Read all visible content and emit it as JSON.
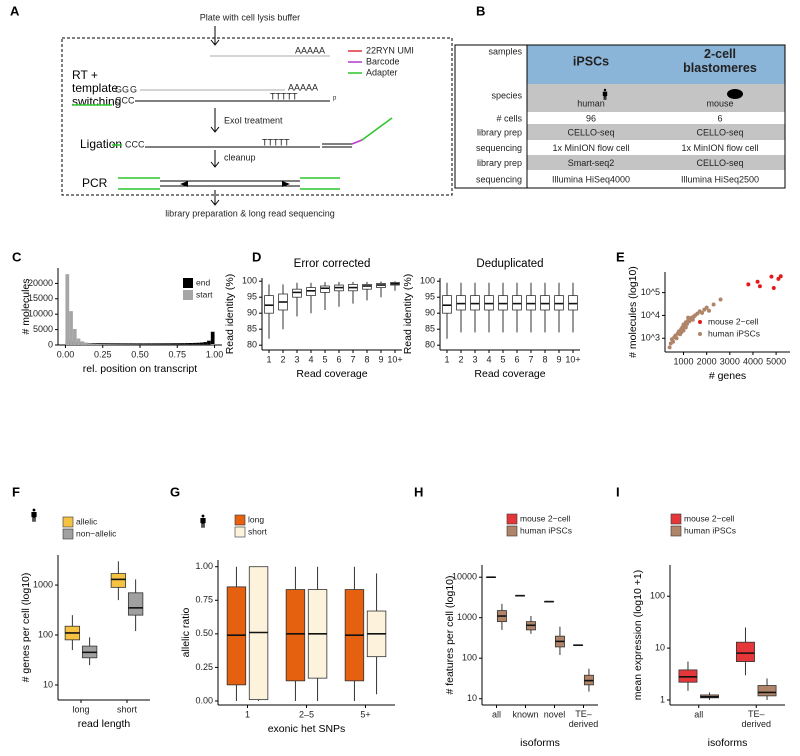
{
  "diagram": {
    "panel_label": "A",
    "plate": "Plate with cell lysis buffer",
    "polyA": "AAAAA",
    "legend": [
      "22RYN UMI",
      "Barcode",
      "Adapter"
    ],
    "steps": [
      "RT +\ntemplate\nswitching",
      "ExoI treatment",
      "Ligation",
      "cleanup",
      "PCR"
    ],
    "gg": "GG",
    "g": "G",
    "polyA_rt": "AAAAA",
    "ccc": "CCC",
    "polyT": "TTTTT",
    "phosphate": "p",
    "ccc_lig": "CCC",
    "polyT_lig": "TTTTT",
    "final": "library preparation & long read sequencing"
  },
  "table": {
    "panel_label": "B",
    "rows": [
      [
        "samples",
        "iPSCs",
        "2-cell\nblastomeres"
      ],
      [
        "species",
        "human",
        "mouse"
      ],
      [
        "# cells",
        "96",
        "6"
      ],
      [
        "library prep",
        "CELLO-seq",
        "CELLO-seq"
      ],
      [
        "sequencing",
        "1x MinION flow cell",
        "1x MinION flow cell"
      ],
      [
        "library prep",
        "Smart-seq2",
        "CELLO-seq"
      ],
      [
        "sequencing",
        "Illumina HiSeq4000",
        "Illumina HiSeq2500"
      ]
    ]
  },
  "chart_data": [
    {
      "type": "histogram",
      "panel_label": "C",
      "x_label": "rel. position on transcript",
      "y_label": "# molecules",
      "legend": "top-right",
      "bins": [
        0,
        0.025,
        0.05,
        0.075,
        0.1,
        0.125,
        0.15,
        0.175,
        0.2,
        0.225,
        0.25,
        0.275,
        0.3,
        0.325,
        0.35,
        0.375,
        0.4,
        0.425,
        0.45,
        0.475,
        0.5,
        0.525,
        0.55,
        0.575,
        0.6,
        0.625,
        0.65,
        0.675,
        0.7,
        0.725,
        0.75,
        0.775,
        0.8,
        0.825,
        0.85,
        0.875,
        0.9,
        0.925,
        0.95,
        0.975,
        1
      ],
      "series": [
        {
          "name": "end",
          "color": "#000000",
          "values": [
            1600,
            1100,
            850,
            750,
            700,
            650,
            620,
            600,
            590,
            580,
            570,
            560,
            560,
            550,
            550,
            540,
            540,
            540,
            530,
            530,
            530,
            530,
            540,
            540,
            550,
            550,
            560,
            560,
            570,
            580,
            590,
            600,
            620,
            650,
            680,
            720,
            800,
            950,
            1400,
            4300
          ]
        },
        {
          "name": "start",
          "color": "#a6a6a6",
          "values": [
            23000,
            11000,
            5200,
            2100,
            1200,
            800,
            550,
            420,
            350,
            300,
            270,
            250,
            230,
            220,
            210,
            200,
            190,
            180,
            170,
            160,
            150,
            150,
            140,
            140,
            130,
            130,
            120,
            120,
            110,
            110,
            100,
            100,
            100,
            90,
            90,
            90,
            80,
            80,
            80,
            300
          ]
        }
      ],
      "xlim": [
        -0.05,
        1.05
      ],
      "xticks": [
        {
          "value": 0,
          "label": "0.00"
        },
        0.25,
        {
          "value": 0.5,
          "label": "0.50"
        },
        0.75,
        {
          "value": 1,
          "label": "1.00"
        }
      ],
      "ylim": [
        0,
        25000
      ],
      "yticks": [
        0,
        5000,
        10000,
        15000,
        20000
      ]
    },
    {
      "type": "box",
      "panel_label": "D",
      "title": "Error corrected",
      "x_label": "Read coverage",
      "y_label": "Read identity (%)",
      "categories": [
        "1",
        "2",
        "3",
        "4",
        "5",
        "6",
        "7",
        "8",
        "9",
        "10+"
      ],
      "series": [
        {
          "color": "#ffffff",
          "boxes": [
            {
              "min": 82,
              "q1": 90,
              "median": 92.5,
              "q3": 95.5,
              "max": 99
            },
            {
              "min": 85,
              "q1": 91,
              "median": 93.5,
              "q3": 96,
              "max": 99
            },
            {
              "min": 89,
              "q1": 95,
              "median": 96.5,
              "q3": 97.5,
              "max": 99.5
            },
            {
              "min": 90,
              "q1": 95.5,
              "median": 97,
              "q3": 98,
              "max": 99.5
            },
            {
              "min": 91,
              "q1": 96.5,
              "median": 97.8,
              "q3": 98.5,
              "max": 99.7
            },
            {
              "min": 92,
              "q1": 97,
              "median": 98,
              "q3": 98.8,
              "max": 99.8
            },
            {
              "min": 93,
              "q1": 97,
              "median": 98,
              "q3": 99,
              "max": 99.8
            },
            {
              "min": 94,
              "q1": 97.5,
              "median": 98.5,
              "q3": 99,
              "max": 99.8
            },
            {
              "min": 95,
              "q1": 98,
              "median": 98.8,
              "q3": 99.3,
              "max": 99.9
            },
            {
              "min": 97,
              "q1": 98.8,
              "median": 99.2,
              "q3": 99.6,
              "max": 100
            }
          ]
        }
      ],
      "ylim": [
        78.5,
        101
      ],
      "yticks": [
        80,
        85,
        90,
        95,
        100
      ]
    },
    {
      "type": "box",
      "title": "Deduplicated",
      "x_label": "Read coverage",
      "y_label": "Read identity (%)",
      "categories": [
        "1",
        "2",
        "3",
        "4",
        "5",
        "6",
        "7",
        "8",
        "9",
        "10+"
      ],
      "series": [
        {
          "color": "#ffffff",
          "boxes": [
            {
              "min": 82,
              "q1": 90,
              "median": 92.5,
              "q3": 95.5,
              "max": 99.5
            },
            {
              "min": 84,
              "q1": 91,
              "median": 93,
              "q3": 95.5,
              "max": 99.5
            },
            {
              "min": 84,
              "q1": 91,
              "median": 93,
              "q3": 95.5,
              "max": 99.5
            },
            {
              "min": 84,
              "q1": 91,
              "median": 93,
              "q3": 95.5,
              "max": 99.5
            },
            {
              "min": 84,
              "q1": 91,
              "median": 93,
              "q3": 95.5,
              "max": 99.5
            },
            {
              "min": 84,
              "q1": 91,
              "median": 93,
              "q3": 95.5,
              "max": 99.5
            },
            {
              "min": 84,
              "q1": 91,
              "median": 93,
              "q3": 95.5,
              "max": 99.5
            },
            {
              "min": 84,
              "q1": 91,
              "median": 93,
              "q3": 95.5,
              "max": 99.5
            },
            {
              "min": 84,
              "q1": 91,
              "median": 93,
              "q3": 95.5,
              "max": 99.5
            },
            {
              "min": 84,
              "q1": 91,
              "median": 93,
              "q3": 95.5,
              "max": 99.5
            }
          ]
        }
      ],
      "ylim": [
        78.5,
        101
      ],
      "yticks": [
        80,
        85,
        90,
        95,
        100
      ]
    },
    {
      "type": "scatter",
      "panel_label": "E",
      "x_label": "# genes",
      "y_label": "# molecules (log10)",
      "legend": "bottom-right",
      "log_y": true,
      "series": [
        {
          "name": "mouse 2−cell",
          "color": "#e31a1c",
          "x": [
            3800,
            4200,
            4800,
            5100,
            5200,
            4900,
            4300
          ],
          "y": [
            230000,
            300000,
            500000,
            400000,
            520000,
            160000,
            190000
          ]
        },
        {
          "name": "human iPSCs",
          "color": "#b08468",
          "x": [
            400,
            450,
            500,
            550,
            600,
            650,
            700,
            750,
            800,
            850,
            900,
            950,
            1000,
            1000,
            1050,
            1100,
            1150,
            1200,
            1250,
            1300,
            1350,
            1400,
            1450,
            1500,
            1600,
            1700,
            1800,
            1900,
            2000,
            2100,
            2300,
            2600,
            1200,
            900,
            1100
          ],
          "y": [
            400,
            600,
            900,
            700,
            1100,
            1300,
            1000,
            1600,
            2000,
            1500,
            2500,
            3000,
            2200,
            4000,
            3500,
            5000,
            4200,
            6000,
            5500,
            7000,
            8000,
            6500,
            9000,
            10000,
            12000,
            15000,
            13000,
            18000,
            22000,
            16000,
            30000,
            50000,
            8000,
            1800,
            3000
          ]
        }
      ],
      "xlim": [
        200,
        5600
      ],
      "xticks": [
        1000,
        2000,
        3000,
        4000,
        5000
      ],
      "ylim": [
        250,
        800000
      ],
      "yticks": [
        {
          "value": 1000,
          "label": "10^3"
        },
        {
          "value": 10000,
          "label": "10^4"
        },
        {
          "value": 100000,
          "label": "10^5"
        }
      ]
    },
    {
      "type": "box",
      "panel_label": "F",
      "x_label": "read length",
      "y_label": "# genes per cell (log10)",
      "legend": "top",
      "log_y": true,
      "categories": [
        "long",
        "short"
      ],
      "series": [
        {
          "name": "allelic",
          "color": "#f5c242",
          "boxes": [
            {
              "min": 50,
              "q1": 80,
              "median": 110,
              "q3": 150,
              "max": 250
            },
            {
              "min": 500,
              "q1": 900,
              "median": 1300,
              "q3": 1700,
              "max": 3000
            }
          ]
        },
        {
          "name": "non−allelic",
          "color": "#a0a0a0",
          "boxes": [
            {
              "min": 25,
              "q1": 35,
              "median": 45,
              "q3": 60,
              "max": 90
            },
            {
              "min": 120,
              "q1": 250,
              "median": 350,
              "q3": 700,
              "max": 1300
            }
          ]
        }
      ],
      "ylim": [
        5,
        4000
      ],
      "yticks": [
        10,
        100,
        1000
      ]
    },
    {
      "type": "box",
      "panel_label": "G",
      "x_label": "exonic het SNPs",
      "y_label": "allelic ratio",
      "legend": "top",
      "categories": [
        "1",
        "2–5",
        "5+"
      ],
      "series": [
        {
          "name": "long",
          "color": "#e5600f",
          "boxes": [
            {
              "min": 0,
              "q1": 0.12,
              "median": 0.49,
              "q3": 0.85,
              "max": 1
            },
            {
              "min": 0,
              "q1": 0.15,
              "median": 0.5,
              "q3": 0.83,
              "max": 1
            },
            {
              "min": 0,
              "q1": 0.15,
              "median": 0.49,
              "q3": 0.83,
              "max": 1
            }
          ]
        },
        {
          "name": "short",
          "color": "#fdf3dc",
          "boxes": [
            {
              "min": 0,
              "q1": 0.01,
              "median": 0.51,
              "q3": 1,
              "max": 1
            },
            {
              "min": 0,
              "q1": 0.17,
              "median": 0.5,
              "q3": 0.83,
              "max": 1
            },
            {
              "min": 0.05,
              "q1": 0.33,
              "median": 0.5,
              "q3": 0.67,
              "max": 0.95
            }
          ]
        }
      ],
      "ylim": [
        -0.03,
        1.05
      ],
      "yticks": [
        {
          "value": 0,
          "label": "0.00"
        },
        0.25,
        {
          "value": 0.5,
          "label": "0.50"
        },
        0.75,
        {
          "value": 1,
          "label": "1.00"
        }
      ]
    },
    {
      "type": "box",
      "panel_label": "H",
      "x_label": "isoforms",
      "y_label": "# features per cell (log10)",
      "legend": "top",
      "log_y": true,
      "categories": [
        "all",
        "known",
        "novel",
        "TE–\nderived"
      ],
      "series": [
        {
          "name": "mouse 2−cell",
          "color": "#e5373a",
          "boxes": [
            {
              "min": 9900,
              "q1": 9950,
              "median": 10000,
              "q3": 10050,
              "max": 10100
            },
            {
              "min": 3450,
              "q1": 3480,
              "median": 3500,
              "q3": 3520,
              "max": 3550
            },
            {
              "min": 2450,
              "q1": 2480,
              "median": 2500,
              "q3": 2520,
              "max": 2550
            },
            {
              "min": 205,
              "q1": 208,
              "median": 210,
              "q3": 212,
              "max": 215
            }
          ]
        },
        {
          "name": "human iPSCs",
          "color": "#b08468",
          "boxes": [
            {
              "min": 500,
              "q1": 800,
              "median": 1100,
              "q3": 1500,
              "max": 2200
            },
            {
              "min": 400,
              "q1": 500,
              "median": 650,
              "q3": 800,
              "max": 1100
            },
            {
              "min": 120,
              "q1": 190,
              "median": 260,
              "q3": 350,
              "max": 600
            },
            {
              "min": 15,
              "q1": 22,
              "median": 28,
              "q3": 38,
              "max": 55
            }
          ]
        }
      ],
      "ylim": [
        7,
        20000
      ],
      "yticks": [
        10,
        100,
        1000,
        10000
      ]
    },
    {
      "type": "box",
      "panel_label": "I",
      "x_label": "isoforms",
      "y_label": "mean expression (log10 +1)",
      "legend": "top",
      "log_y": true,
      "categories": [
        "all",
        "TE–\nderived"
      ],
      "series": [
        {
          "name": "mouse 2−cell",
          "color": "#e5373a",
          "boxes": [
            {
              "min": 1.5,
              "q1": 2.2,
              "median": 2.8,
              "q3": 3.8,
              "max": 5.5
            },
            {
              "min": 3,
              "q1": 5.5,
              "median": 8,
              "q3": 13,
              "max": 25
            }
          ]
        },
        {
          "name": "human iPSCs",
          "color": "#b08468",
          "boxes": [
            {
              "min": 1,
              "q1": 1.1,
              "median": 1.15,
              "q3": 1.25,
              "max": 1.4
            },
            {
              "min": 1,
              "q1": 1.2,
              "median": 1.4,
              "q3": 1.9,
              "max": 2.6
            }
          ]
        }
      ],
      "ylim": [
        0.8,
        400
      ],
      "yticks": [
        1,
        10,
        100
      ]
    }
  ]
}
